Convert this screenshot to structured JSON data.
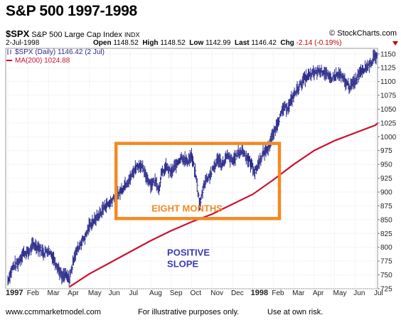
{
  "header": {
    "title": "S&P 500  1997-1998",
    "symbol": "$SPX",
    "name": "S&P 500 Large Cap Index",
    "exchange": "INDX",
    "brand": "© StockCharts.com",
    "date": "2-Jul-1998",
    "open_label": "Open",
    "open": "1148.52",
    "high_label": "High",
    "high": "1148.52",
    "low_label": "Low",
    "low": "1142.99",
    "last_label": "Last",
    "last": "1146.42",
    "chg_label": "Chg",
    "chg": "-2.14 (-0.19%)"
  },
  "footer": {
    "website": "www.ccmmarketmodel.com",
    "note1": "For illustrative purposes only.",
    "note2": "Use at own risk."
  },
  "colors": {
    "price": "#2c2c8c",
    "ma": "#cc1133",
    "box": "#f28a24",
    "box_text": "#f28a24",
    "slope_text": "#3a3ab4",
    "neg": "#c00000"
  },
  "chart_data": {
    "type": "line",
    "legend": [
      {
        "label": "$SPX (Daily) 1146.42 (2 Jul)",
        "color": "#2c2c8c"
      },
      {
        "label": "MA(200) 1024.88",
        "color": "#cc1133"
      }
    ],
    "legend_position": "top-left",
    "grid": true,
    "ylim": [
      725,
      1160
    ],
    "y_ticks": [
      725,
      750,
      775,
      800,
      825,
      850,
      875,
      900,
      925,
      950,
      975,
      1000,
      1025,
      1050,
      1075,
      1100,
      1125,
      1150
    ],
    "x_ticks": [
      "1997",
      "Feb",
      "Mar",
      "Apr",
      "May",
      "Jun",
      "Jul",
      "Aug",
      "Sep",
      "Oct",
      "Nov",
      "Dec",
      "1998",
      "Feb",
      "Mar",
      "Apr",
      "May",
      "Jun",
      "Jul"
    ],
    "x_tick_bold": [
      "1997",
      "1998"
    ],
    "x_months": [
      "1997-01",
      "1997-02",
      "1997-03",
      "1997-04",
      "1997-05",
      "1997-06",
      "1997-07",
      "1997-08",
      "1997-09",
      "1997-10",
      "1997-11",
      "1997-12",
      "1998-01",
      "1998-02",
      "1998-03",
      "1998-04",
      "1998-05",
      "1998-06",
      "1998-07"
    ],
    "series": [
      {
        "name": "$SPX",
        "style": "ohlc-bars",
        "x": [
          0,
          0.25,
          0.5,
          0.75,
          1.0,
          1.25,
          1.5,
          1.75,
          2.0,
          2.25,
          2.5,
          2.65,
          2.8,
          3.0,
          3.15,
          3.25,
          3.4,
          3.6,
          3.8,
          4.0,
          4.25,
          4.5,
          4.75,
          5.0,
          5.25,
          5.5,
          5.75,
          6.0,
          6.25,
          6.5,
          6.75,
          7.0,
          7.25,
          7.4,
          7.5,
          7.75,
          8.0,
          8.25,
          8.5,
          8.75,
          9.0,
          9.2,
          9.4,
          9.6,
          9.75,
          9.9,
          10.1,
          10.3,
          10.5,
          10.75,
          11.0,
          11.25,
          11.5,
          11.75,
          12.0,
          12.1,
          12.25,
          12.5,
          12.75,
          13.0,
          13.25,
          13.5,
          13.75,
          14.0,
          14.25,
          14.5,
          14.75,
          15.0,
          15.25,
          15.5,
          15.75,
          16.0,
          16.25,
          16.5,
          16.75,
          17.0,
          17.25,
          17.5,
          17.75,
          18.0,
          18.1
        ],
        "values": [
          740,
          765,
          772,
          790,
          790,
          805,
          800,
          790,
          795,
          780,
          760,
          745,
          750,
          742,
          765,
          785,
          795,
          810,
          820,
          840,
          850,
          860,
          875,
          880,
          895,
          900,
          915,
          925,
          945,
          950,
          930,
          915,
          920,
          905,
          930,
          945,
          935,
          950,
          965,
          955,
          965,
          930,
          875,
          915,
          925,
          930,
          945,
          960,
          950,
          965,
          955,
          970,
          975,
          960,
          945,
          935,
          950,
          970,
          980,
          1005,
          1030,
          1050,
          1055,
          1075,
          1090,
          1105,
          1110,
          1115,
          1120,
          1118,
          1105,
          1110,
          1112,
          1100,
          1090,
          1100,
          1120,
          1125,
          1133,
          1146,
          1146.42
        ]
      },
      {
        "name": "MA(200)",
        "style": "line",
        "x": [
          3.0,
          4.0,
          5.0,
          6.0,
          7.0,
          8.0,
          9.0,
          10.0,
          11.0,
          12.0,
          13.0,
          14.0,
          15.0,
          16.0,
          17.0,
          18.0,
          18.1
        ],
        "values": [
          728,
          752,
          772,
          792,
          812,
          830,
          846,
          860,
          878,
          896,
          922,
          950,
          975,
          993,
          1007,
          1021,
          1024.88
        ]
      }
    ],
    "annotations": [
      {
        "text": "EIGHT MONTHS",
        "type": "box",
        "x_from": 5.3,
        "x_to": 13.3,
        "y_from": 852,
        "y_to": 988
      },
      {
        "text": "POSITIVE SLOPE",
        "lines": [
          "POSITIVE",
          "SLOPE"
        ],
        "x": 7.8,
        "y": 785
      }
    ]
  }
}
